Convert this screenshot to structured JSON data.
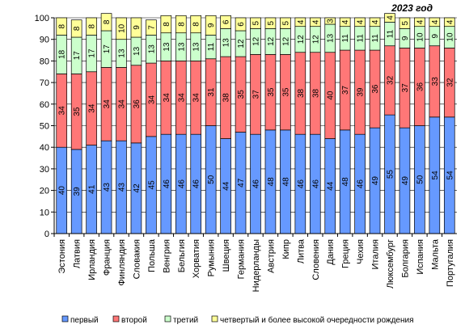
{
  "chart_data": {
    "type": "bar",
    "stacked": true,
    "title": "2023 год",
    "xlabel": "",
    "ylabel": "",
    "ylim": [
      0,
      100
    ],
    "yticks": [
      0,
      10,
      20,
      30,
      40,
      50,
      60,
      70,
      80,
      90,
      100
    ],
    "grid": true,
    "legend_position": "bottom",
    "categories": [
      "Эстония",
      "Латвия",
      "Ирландия",
      "Франция",
      "Финляндия",
      "Словакия",
      "Польша",
      "Венгрия",
      "Бельгия",
      "Хорватия",
      "Румыния",
      "Швеция",
      "Германия",
      "Нидерланды",
      "Австрия",
      "Кипр",
      "Литва",
      "Словения",
      "Дания",
      "Греция",
      "Чехия",
      "Италия",
      "Люксембург",
      "Болгария",
      "Испания",
      "Мальта",
      "Португалия"
    ],
    "series": [
      {
        "name": "первый",
        "color": "#6699FF",
        "values": [
          40,
          39,
          41,
          43,
          43,
          42,
          45,
          46,
          46,
          46,
          50,
          44,
          47,
          46,
          48,
          48,
          46,
          46,
          44,
          48,
          46,
          49,
          55,
          49,
          50,
          54,
          54
        ]
      },
      {
        "name": "второй",
        "color": "#FF7777",
        "values": [
          34,
          35,
          34,
          34,
          34,
          36,
          34,
          34,
          34,
          34,
          31,
          38,
          35,
          37,
          35,
          35,
          38,
          38,
          40,
          37,
          39,
          36,
          32,
          37,
          36,
          33,
          32
        ]
      },
      {
        "name": "третий",
        "color": "#CCFFCC",
        "values": [
          18,
          17,
          17,
          17,
          13,
          13,
          13,
          13,
          13,
          13,
          11,
          13,
          12,
          12,
          12,
          12,
          12,
          12,
          13,
          11,
          11,
          11,
          11,
          9,
          10,
          9,
          10
        ]
      },
      {
        "name": "четвертый и более  высокой очередности  рождения",
        "color": "#FFFF99",
        "values": [
          8,
          8,
          8,
          8,
          10,
          9,
          7,
          8,
          8,
          8,
          9,
          6,
          6,
          5,
          5,
          5,
          4,
          4,
          3,
          4,
          4,
          4,
          4,
          5,
          4,
          4,
          4
        ]
      }
    ]
  }
}
